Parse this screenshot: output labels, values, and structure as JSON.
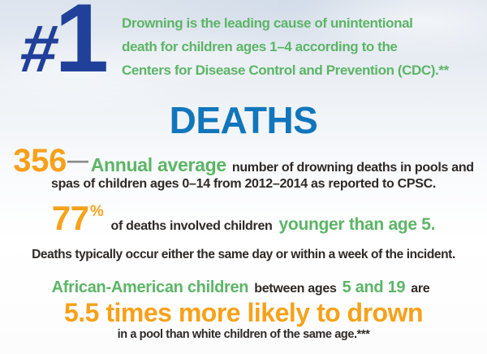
{
  "colors": {
    "navy": "#21409A",
    "blue": "#1176BC",
    "green": "#5CB566",
    "orange": "#F7A11A",
    "dark": "#2E2A27"
  },
  "header": {
    "rank": {
      "hash": "#",
      "number": "1"
    },
    "lead": {
      "line1": "Drowning is the leading cause of unintentional",
      "line2": "death for children ages 1–4 according to the",
      "line3": "Centers for Disease Control and Prevention (CDC).**"
    }
  },
  "section": {
    "title": "DEATHS"
  },
  "stats": {
    "annual": {
      "number": "356",
      "dash": "—",
      "highlight": "Annual average",
      "text1": "number of drowning deaths in pools and",
      "text2": "spas of children ages 0–14 from 2012–2014 as reported to CPSC."
    },
    "age": {
      "number": "77",
      "percent": "%",
      "text": "of deaths involved children",
      "highlight": "younger than age 5."
    },
    "timing": {
      "text": "Deaths typically occur either the same day or within a week of the incident."
    },
    "disparity": {
      "highlight1": "African-American children",
      "text1": "between ages",
      "highlight2": "5 and 19",
      "text2": "are",
      "big": "5.5 times more likely to drown",
      "note": "in a pool than white children of the same age.***"
    }
  }
}
